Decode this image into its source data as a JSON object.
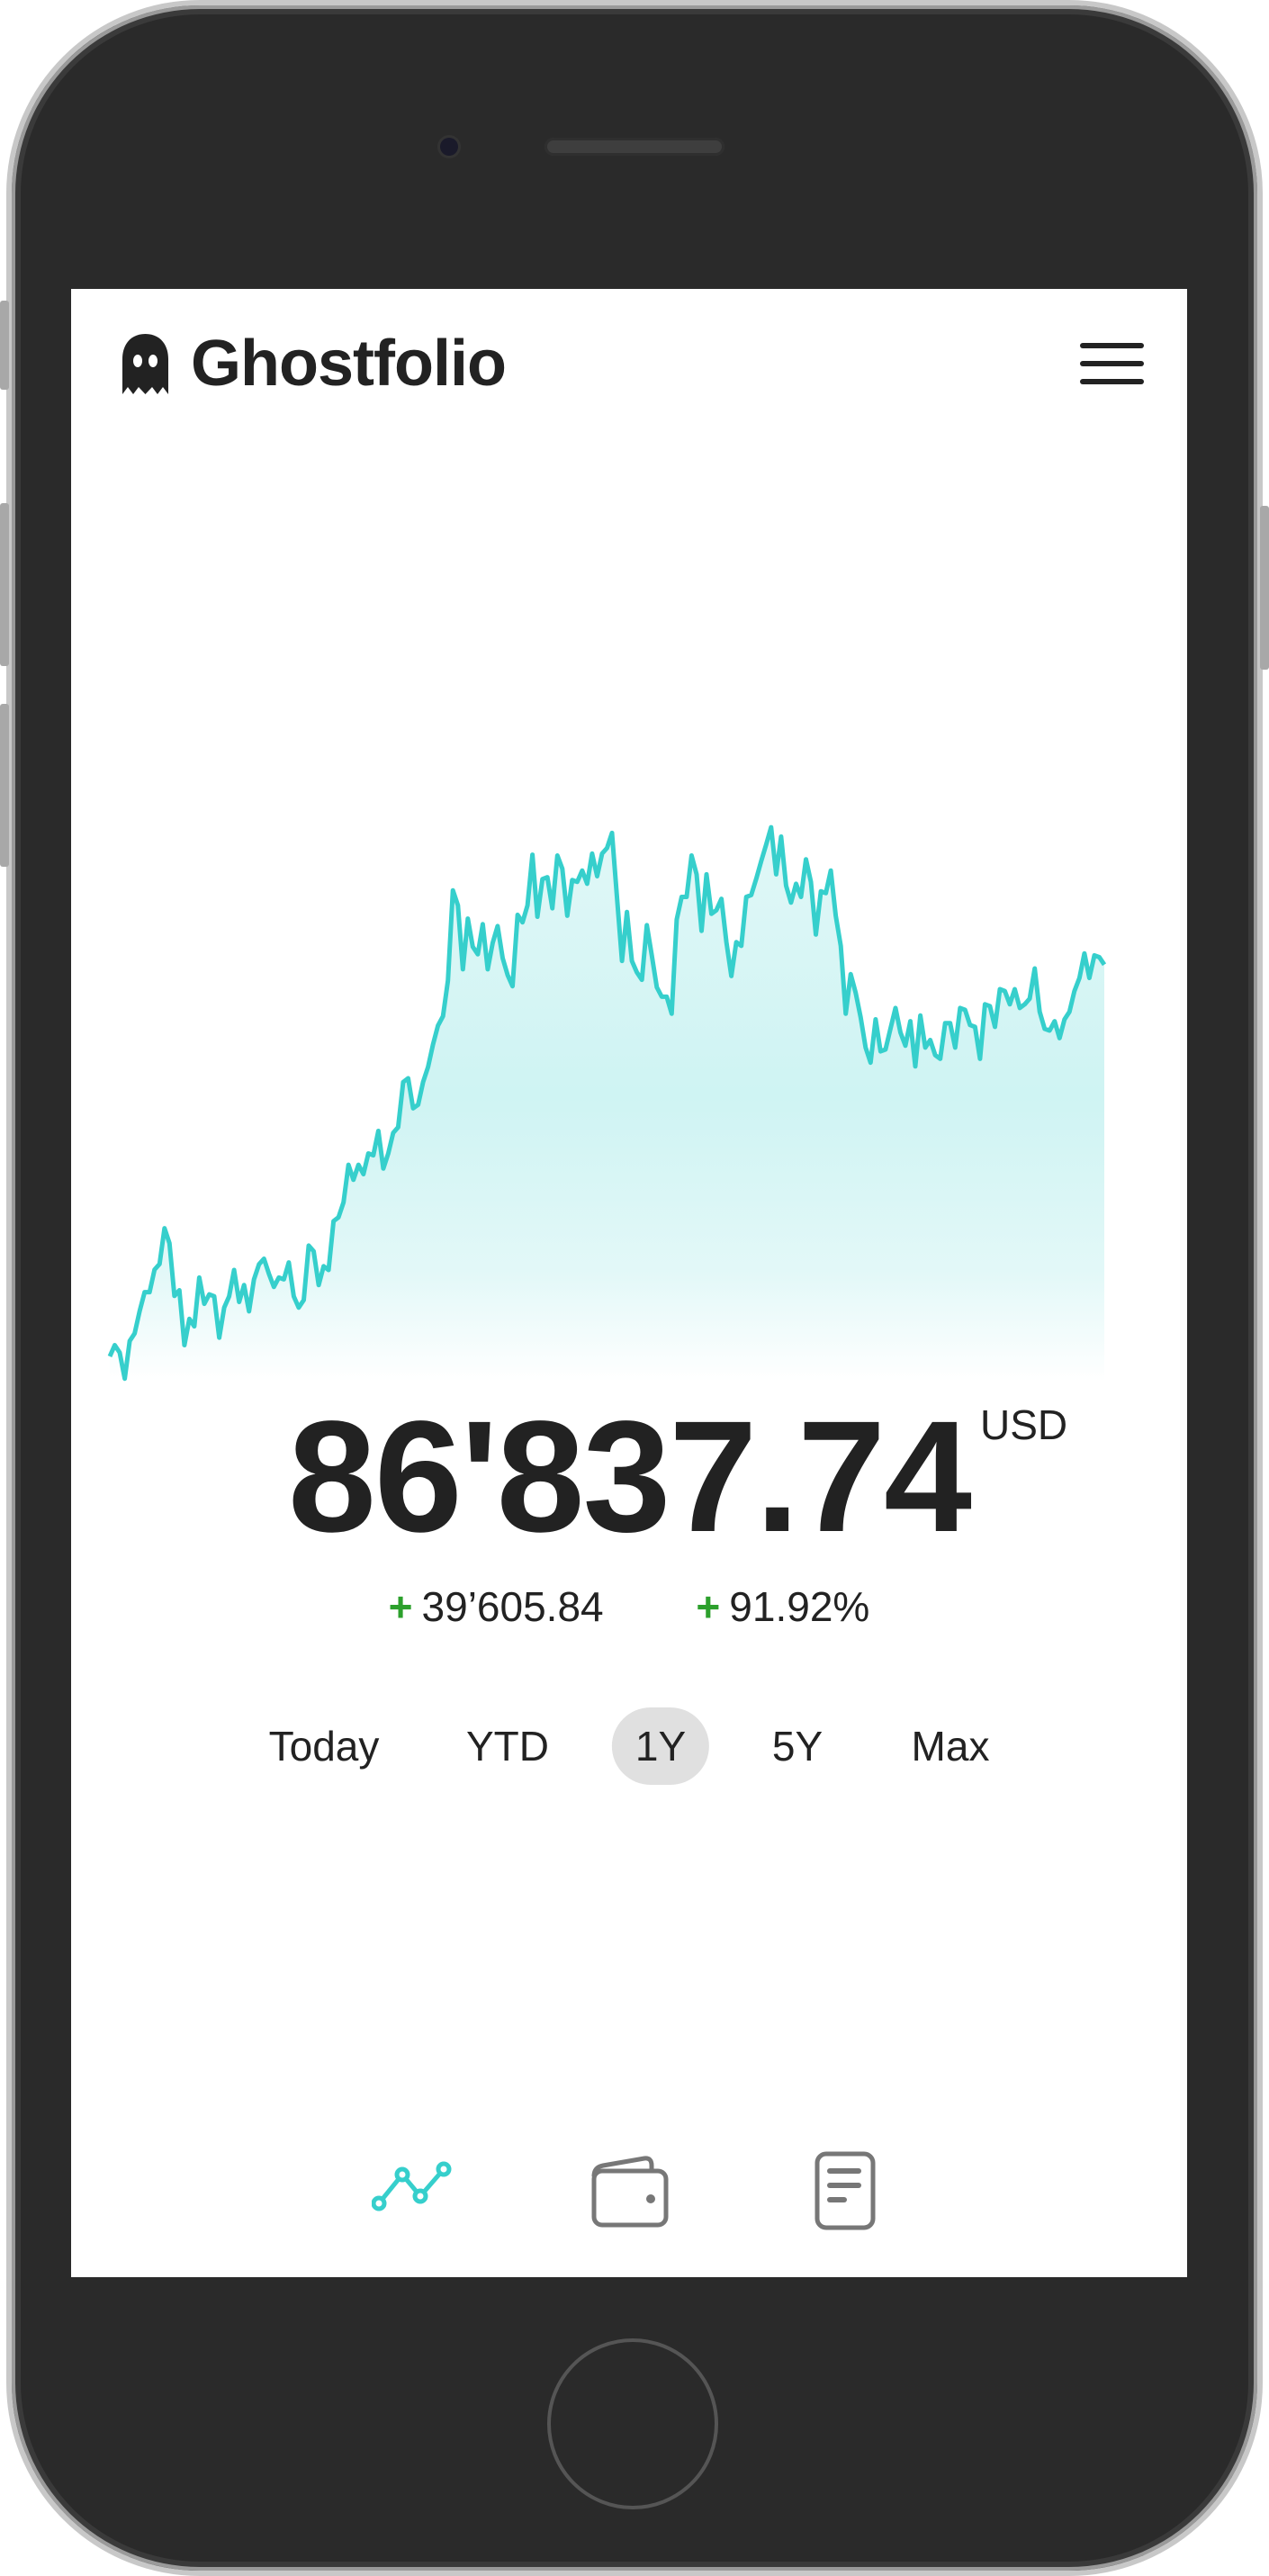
{
  "app": {
    "title": "Ghostfolio",
    "logo_icon": "ghost-icon"
  },
  "header": {
    "menu_icon": "hamburger-menu-icon"
  },
  "performance": {
    "value": "86'837.74",
    "currency": "USD",
    "absolute_change_sign": "+",
    "absolute_change": "39’605.84",
    "relative_change_sign": "+",
    "relative_change": "91.92%",
    "positive_color": "#2ca02c"
  },
  "periods": {
    "items": [
      {
        "label": "Today",
        "active": false
      },
      {
        "label": "YTD",
        "active": false
      },
      {
        "label": "1Y",
        "active": true
      },
      {
        "label": "5Y",
        "active": false
      },
      {
        "label": "Max",
        "active": false
      }
    ]
  },
  "bottom_nav": {
    "items": [
      {
        "icon": "line-chart-icon",
        "active": true
      },
      {
        "icon": "wallet-icon",
        "active": false
      },
      {
        "icon": "document-icon",
        "active": false
      }
    ],
    "active_color": "#36cfcc",
    "inactive_color": "#777777"
  },
  "chart_data": {
    "type": "area",
    "title": "",
    "xlabel": "",
    "ylabel": "",
    "axes_visible": false,
    "grid": false,
    "ylim": [
      40500,
      104200
    ],
    "line_color": "#36cfcc",
    "fill": "gradient teal to white",
    "values": [
      47232,
      48372,
      47612,
      44987,
      48790,
      49550,
      51830,
      53730,
      53730,
      56010,
      56580,
      60190,
      58670,
      53350,
      53920,
      48372,
      51032,
      50272,
      55210,
      52550,
      53500,
      53310,
      49130,
      52170,
      53310,
      55970,
      52740,
      54450,
      51790,
      55020,
      56540,
      57110,
      55590,
      54260,
      55210,
      55020,
      56730,
      53310,
      52170,
      52930,
      58440,
      57870,
      54450,
      56350,
      55970,
      60910,
      61290,
      62810,
      66610,
      65090,
      66610,
      65660,
      67750,
      67560,
      70030,
      66230,
      67750,
      69840,
      70410,
      74970,
      75350,
      72310,
      72690,
      74970,
      76490,
      78770,
      80670,
      81620,
      85230,
      94350,
      92830,
      86370,
      91500,
      88650,
      87890,
      90930,
      86370,
      89030,
      90740,
      87510,
      85800,
      84660,
      91880,
      91120,
      92830,
      97960,
      91690,
      95490,
      95680,
      92547,
      97878,
      96545,
      91785,
      95403,
      95213,
      96355,
      95022,
      98068,
      95783,
      98068,
      98640,
      100163,
      93690,
      87216,
      92166,
      87216,
      86074,
      85312,
      90833,
      87787,
      84551,
      83599,
      83599,
      81885,
      91404,
      93689,
      93689,
      97878,
      95974,
      90262,
      95974,
      91975,
      92356,
      93499,
      89120,
      85693,
      89120,
      88739,
      93689,
      93880,
      95525,
      97307,
      98986,
      100734,
      95974,
      99782,
      94832,
      93118,
      95022,
      93689,
      97497,
      95213,
      89882,
      94260,
      94070,
      96355,
      91785,
      88739,
      81885,
      85883,
      83979,
      81505,
      78459,
      76935,
      81315,
      78078,
      78269,
      80363,
      82457,
      79982,
      78649,
      81124,
      76555,
      81695,
      78459,
      79220,
      77697,
      77316,
      80933,
      80933,
      78459,
      82457,
      82267,
      80743,
      80552,
      77316,
      82837,
      82647,
      80552,
      84360,
      84170,
      82837,
      84360,
      82457,
      82837,
      83408,
      86455,
      82076,
      80362,
      80172,
      81124,
      79410,
      81314,
      82076,
      84170,
      85502,
      87978,
      85502,
      87787,
      87597,
      86837
    ]
  }
}
